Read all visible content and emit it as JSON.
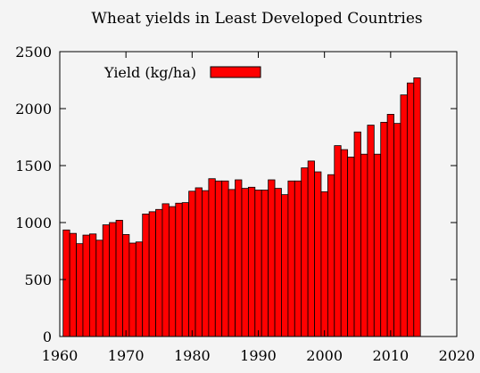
{
  "chart_data": {
    "type": "bar",
    "title": "Wheat yields in Least Developed Countries",
    "xlabel": "",
    "ylabel": "",
    "xlim": [
      1960,
      2020
    ],
    "ylim": [
      0,
      2500
    ],
    "xticks": [
      1960,
      1970,
      1980,
      1990,
      2000,
      2010,
      2020
    ],
    "yticks": [
      0,
      500,
      1000,
      1500,
      2000,
      2500
    ],
    "grid": false,
    "legend_position": "top-left",
    "bar_color": "#ff0000",
    "series": [
      {
        "name": "Yield (kg/ha)",
        "x": [
          1961,
          1962,
          1963,
          1964,
          1965,
          1966,
          1967,
          1968,
          1969,
          1970,
          1971,
          1972,
          1973,
          1974,
          1975,
          1976,
          1977,
          1978,
          1979,
          1980,
          1981,
          1982,
          1983,
          1984,
          1985,
          1986,
          1987,
          1988,
          1989,
          1990,
          1991,
          1992,
          1993,
          1994,
          1995,
          1996,
          1997,
          1998,
          1999,
          2000,
          2001,
          2002,
          2003,
          2004,
          2005,
          2006,
          2007,
          2008,
          2009,
          2010,
          2011,
          2012,
          2013,
          2014
        ],
        "values": [
          935,
          905,
          815,
          890,
          900,
          845,
          980,
          1000,
          1020,
          895,
          820,
          830,
          1075,
          1095,
          1115,
          1165,
          1140,
          1170,
          1175,
          1275,
          1305,
          1280,
          1385,
          1365,
          1365,
          1290,
          1375,
          1300,
          1310,
          1285,
          1285,
          1375,
          1300,
          1245,
          1365,
          1365,
          1480,
          1540,
          1445,
          1270,
          1420,
          1675,
          1640,
          1575,
          1795,
          1600,
          1855,
          1600,
          1880,
          1950,
          1870,
          2120,
          2225,
          2270
        ]
      }
    ]
  }
}
